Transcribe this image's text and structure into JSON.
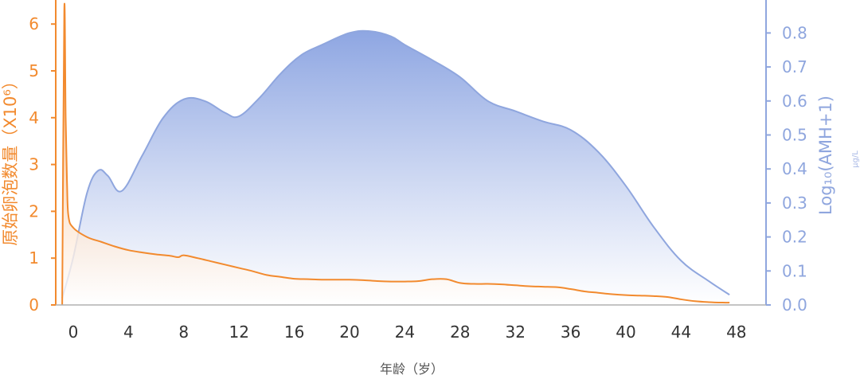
{
  "chart_data": {
    "type": "area",
    "xlabel": "年龄（岁）",
    "x_ticks": [
      0,
      4,
      8,
      12,
      16,
      20,
      24,
      28,
      32,
      36,
      40,
      44,
      48
    ],
    "xlim": [
      -1,
      48
    ],
    "y_left": {
      "label": "原始卵泡数量（X10⁶）",
      "ticks": [
        0,
        1,
        2,
        3,
        4,
        5,
        6
      ],
      "ylim": [
        0,
        6.5
      ],
      "color": "#f28a2e"
    },
    "y_right": {
      "label": "Log₁₀(AMH+1)",
      "unit": "μg/L",
      "ticks": [
        "0.0",
        "0.1",
        "0.2",
        "0.3",
        "0.4",
        "0.5",
        "0.6",
        "0.7",
        "0.8"
      ],
      "ylim": [
        0,
        0.9
      ],
      "color": "#8fa6de"
    },
    "series": [
      {
        "axis": "left",
        "color": "#f28a2e",
        "x": [
          -0.8,
          -0.65,
          -0.55,
          -0.45,
          -0.35,
          0,
          1,
          2,
          3,
          4,
          5,
          6,
          7,
          7.6,
          8,
          9,
          10,
          11,
          12,
          13,
          14,
          15,
          16,
          17,
          18,
          19,
          20,
          21,
          22,
          23,
          24,
          25,
          26,
          27,
          28,
          29,
          30,
          31,
          32,
          33,
          34,
          35,
          36,
          37,
          38,
          39,
          40,
          41,
          42,
          43,
          44,
          45,
          46,
          47,
          47.5
        ],
        "y": [
          0,
          6.3,
          4.0,
          2.6,
          1.9,
          1.65,
          1.45,
          1.35,
          1.25,
          1.17,
          1.12,
          1.08,
          1.05,
          1.02,
          1.06,
          1.0,
          0.93,
          0.86,
          0.79,
          0.72,
          0.64,
          0.6,
          0.56,
          0.55,
          0.54,
          0.54,
          0.54,
          0.53,
          0.51,
          0.5,
          0.5,
          0.51,
          0.55,
          0.55,
          0.47,
          0.45,
          0.45,
          0.44,
          0.42,
          0.4,
          0.39,
          0.38,
          0.34,
          0.29,
          0.26,
          0.23,
          0.21,
          0.2,
          0.19,
          0.17,
          0.12,
          0.08,
          0.06,
          0.05,
          0.05
        ]
      },
      {
        "axis": "right",
        "color": "#8fa6de",
        "x": [
          -0.8,
          0,
          1,
          1.8,
          2.5,
          3.5,
          5,
          6.5,
          8,
          9.5,
          11,
          12,
          13.5,
          15,
          16.5,
          18,
          20,
          21.5,
          23,
          24,
          26,
          28,
          30,
          32,
          34,
          36,
          38,
          40,
          42,
          44,
          46,
          47.5
        ],
        "y": [
          0.02,
          0.14,
          0.33,
          0.395,
          0.38,
          0.335,
          0.44,
          0.55,
          0.605,
          0.6,
          0.565,
          0.555,
          0.61,
          0.68,
          0.735,
          0.765,
          0.8,
          0.805,
          0.79,
          0.765,
          0.72,
          0.67,
          0.6,
          0.57,
          0.54,
          0.515,
          0.45,
          0.35,
          0.23,
          0.13,
          0.07,
          0.03
        ]
      }
    ]
  }
}
